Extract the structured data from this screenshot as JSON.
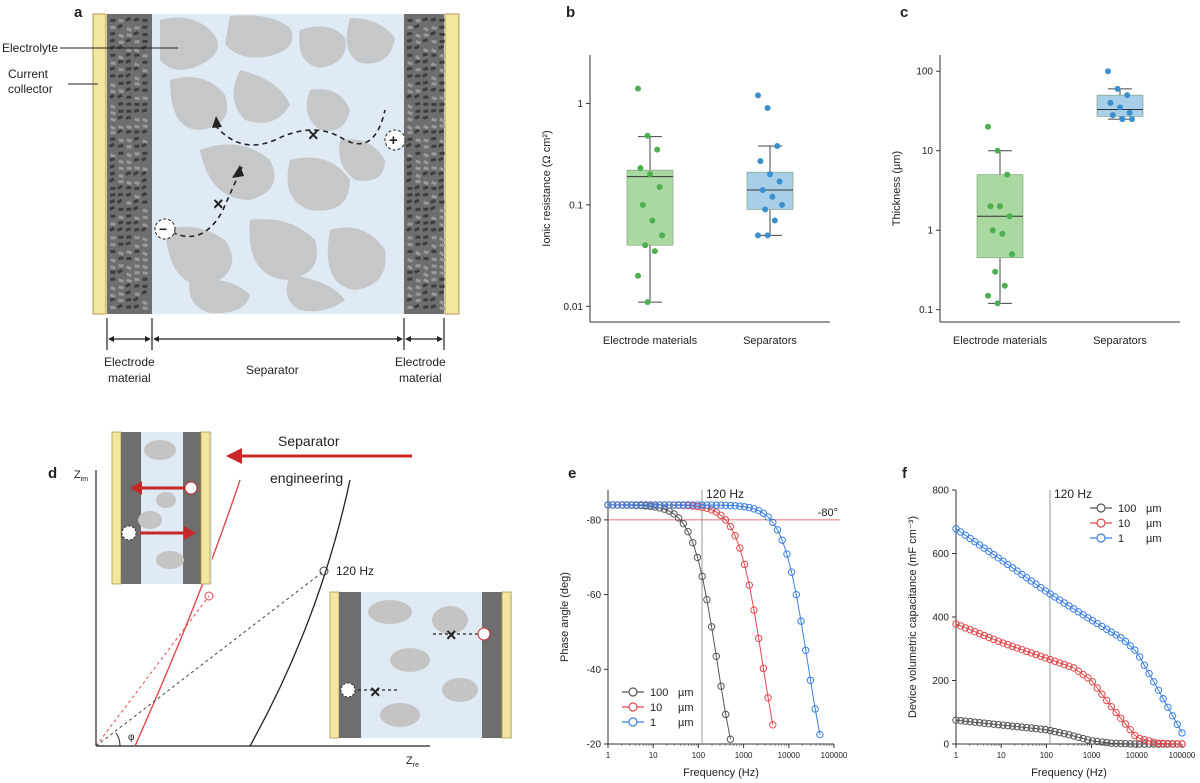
{
  "panels": {
    "a": "a",
    "b": "b",
    "c": "c",
    "d": "d",
    "e": "e",
    "f": "f"
  },
  "schematic_a": {
    "electrolyte": "Electrolyte",
    "current_collector_1": "Current",
    "current_collector_2": "collector",
    "electrode_left_1": "Electrode",
    "electrode_left_2": "material",
    "separator": "Separator",
    "electrode_right_1": "Electrode",
    "electrode_right_2": "material",
    "minus": "−",
    "plus": "+"
  },
  "schematic_d": {
    "arrow_label_1": "Separator",
    "arrow_label_2": "engineering",
    "freq_label": "120 Hz",
    "z_im": "Z",
    "z_im_sub": "im",
    "z_re": "Z",
    "z_re_sub": "re",
    "phi": "φ"
  },
  "colors": {
    "green_box": "#a9d8a0",
    "green_pt": "#4caf50",
    "blue_box": "#a8cfe8",
    "blue_pt": "#3a8fd0",
    "gray": "#555555",
    "red": "#e0484f",
    "blue": "#3b7fe0",
    "collector": "#f4e6a1",
    "separator_bg": "#dfeaf4",
    "particle": "#bdbdbd"
  },
  "chart_data": [
    {
      "panel": "b",
      "type": "box",
      "categories": [
        "Electrode materials",
        "Separators"
      ],
      "ylabel": "Ionic resistance (Ω cm²)",
      "yscale": "log",
      "ylim": [
        0.007,
        3
      ],
      "yticks": [
        0.01,
        0.1,
        1
      ],
      "ytick_labels": [
        "0.01",
        "0.1",
        "1"
      ],
      "boxes": [
        {
          "q1": 0.04,
          "median": 0.19,
          "q3": 0.22,
          "whisker_low": 0.011,
          "whisker_high": 0.47
        },
        {
          "q1": 0.09,
          "median": 0.14,
          "q3": 0.21,
          "whisker_low": 0.05,
          "whisker_high": 0.38
        }
      ],
      "points": [
        [
          1.4,
          0.48,
          0.35,
          0.23,
          0.2,
          0.15,
          0.1,
          0.07,
          0.05,
          0.04,
          0.035,
          0.02,
          0.011
        ],
        [
          1.2,
          0.9,
          0.38,
          0.27,
          0.2,
          0.17,
          0.14,
          0.12,
          0.1,
          0.09,
          0.07,
          0.05,
          0.05
        ]
      ]
    },
    {
      "panel": "c",
      "type": "box",
      "categories": [
        "Electrode materials",
        "Separators"
      ],
      "ylabel": "Thickness (µm)",
      "yscale": "log",
      "ylim": [
        0.07,
        160
      ],
      "yticks": [
        0.1,
        1,
        10,
        100
      ],
      "ytick_labels": [
        "0.1",
        "1",
        "10",
        "100"
      ],
      "boxes": [
        {
          "q1": 0.45,
          "median": 1.5,
          "q3": 5,
          "whisker_low": 0.12,
          "whisker_high": 10
        },
        {
          "q1": 27,
          "median": 33,
          "q3": 50,
          "whisker_low": 25,
          "whisker_high": 60
        }
      ],
      "points": [
        [
          20,
          10,
          5,
          2,
          2,
          1.5,
          1,
          0.9,
          0.5,
          0.3,
          0.2,
          0.15,
          0.12
        ],
        [
          100,
          60,
          50,
          40,
          35,
          30,
          28,
          25,
          25
        ]
      ]
    },
    {
      "panel": "e",
      "type": "line",
      "xlabel": "Frequency (Hz)",
      "ylabel": "Phase angle (deg)",
      "xscale": "log",
      "xlim": [
        1,
        100000
      ],
      "ylim": [
        -20,
        -88
      ],
      "xticks": [
        1,
        10,
        100,
        1000,
        10000,
        100000
      ],
      "xtick_labels": [
        "1",
        "10",
        "100",
        "1000",
        "10000",
        "100000"
      ],
      "yticks": [
        -20,
        -40,
        -60,
        -80
      ],
      "ytick_labels": [
        "-20",
        "-40",
        "-60",
        "-80"
      ],
      "vline": {
        "x": 120,
        "label": "120 Hz"
      },
      "hline": {
        "y": -80,
        "label": "-80°"
      },
      "series": [
        {
          "name": "100",
          "unit": "µm",
          "color": "#555555",
          "fc": 260
        },
        {
          "name": "10",
          "unit": "µm",
          "color": "#e0484f",
          "fc": 2600
        },
        {
          "name": "1",
          "unit": "µm",
          "color": "#3b7fe0",
          "fc": 26000
        }
      ]
    },
    {
      "panel": "f",
      "type": "line",
      "xlabel": "Frequency (Hz)",
      "ylabel": "Device volumetric capacitance (mF cm⁻³)",
      "xscale": "log",
      "xlim": [
        1,
        100000
      ],
      "ylim": [
        0,
        800
      ],
      "xticks": [
        1,
        10,
        100,
        1000,
        10000,
        100000
      ],
      "xtick_labels": [
        "1",
        "10",
        "100",
        "1000",
        "10000",
        "100000"
      ],
      "yticks": [
        0,
        200,
        400,
        600,
        800
      ],
      "ytick_labels": [
        "0",
        "200",
        "400",
        "600",
        "800"
      ],
      "vline": {
        "x": 120,
        "label": "120 Hz"
      },
      "series": [
        {
          "name": "100",
          "unit": "µm",
          "color": "#555555",
          "points": [
            [
              1,
              75
            ],
            [
              10,
              60
            ],
            [
              100,
              45
            ],
            [
              300,
              30
            ],
            [
              1000,
              10
            ],
            [
              3000,
              2
            ],
            [
              10000,
              0
            ],
            [
              100000,
              0
            ]
          ]
        },
        {
          "name": "10",
          "unit": "µm",
          "color": "#e0484f",
          "points": [
            [
              1,
              378
            ],
            [
              10,
              320
            ],
            [
              100,
              270
            ],
            [
              400,
              240
            ],
            [
              1000,
              200
            ],
            [
              3000,
              110
            ],
            [
              10000,
              20
            ],
            [
              30000,
              2
            ],
            [
              100000,
              0
            ]
          ]
        },
        {
          "name": "1",
          "unit": "µm",
          "color": "#3b7fe0",
          "points": [
            [
              1,
              678
            ],
            [
              10,
              580
            ],
            [
              100,
              480
            ],
            [
              1000,
              390
            ],
            [
              5000,
              330
            ],
            [
              10000,
              290
            ],
            [
              30000,
              170
            ],
            [
              100000,
              35
            ]
          ]
        }
      ]
    }
  ]
}
